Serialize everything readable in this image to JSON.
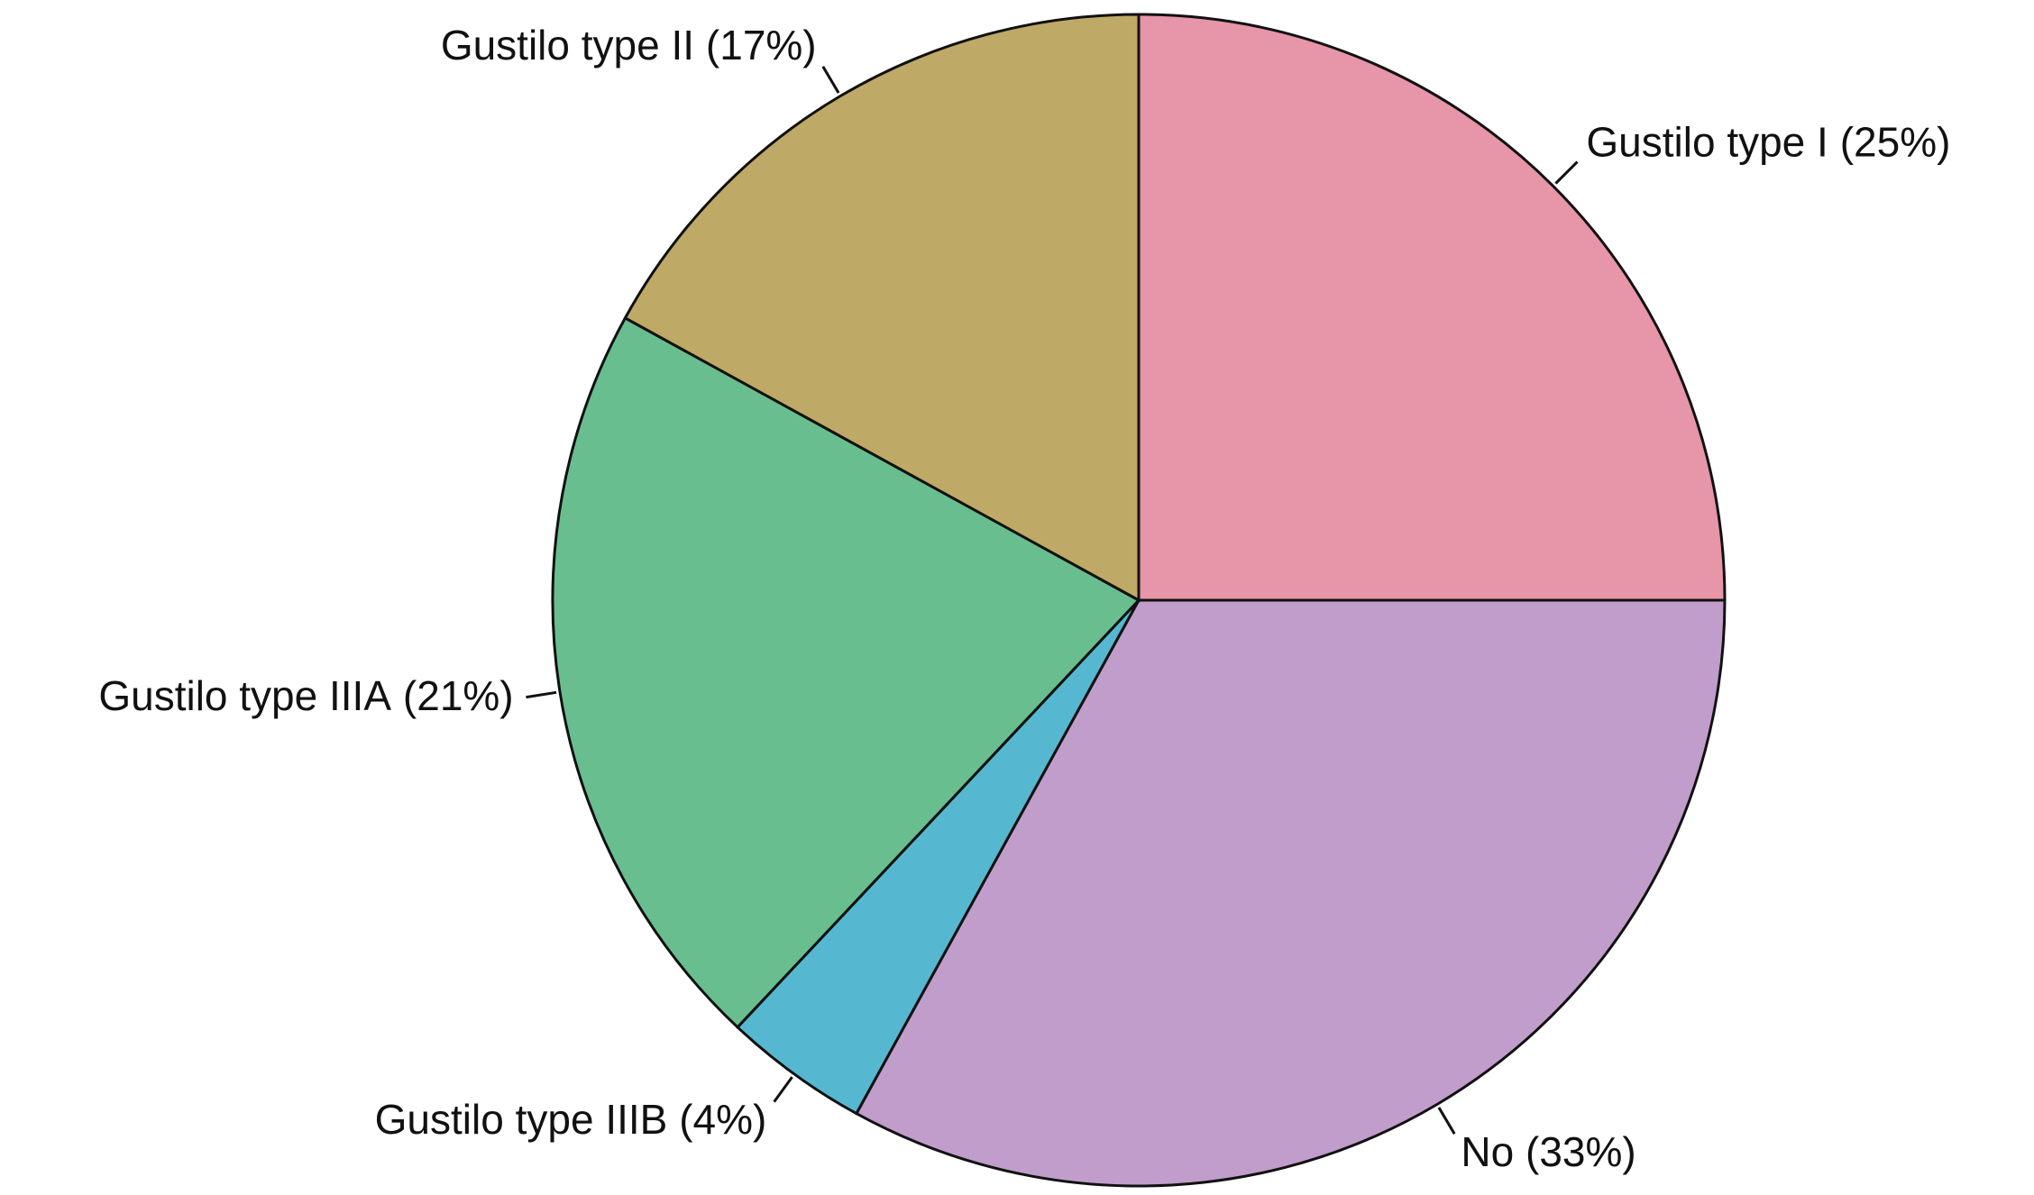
{
  "chart_data": {
    "type": "pie",
    "categories": [
      "Gustilo type I",
      "No",
      "Gustilo type IIIB",
      "Gustilo type IIIA",
      "Gustilo type II"
    ],
    "values": [
      25,
      33,
      4,
      21,
      17
    ],
    "value_labels": [
      "(25%)",
      "(33%)",
      "(4%)",
      "(21%)",
      "(17%)"
    ],
    "colors": [
      "#e795a8",
      "#c09dca",
      "#56b8d0",
      "#69be8f",
      "#bfa967"
    ]
  }
}
